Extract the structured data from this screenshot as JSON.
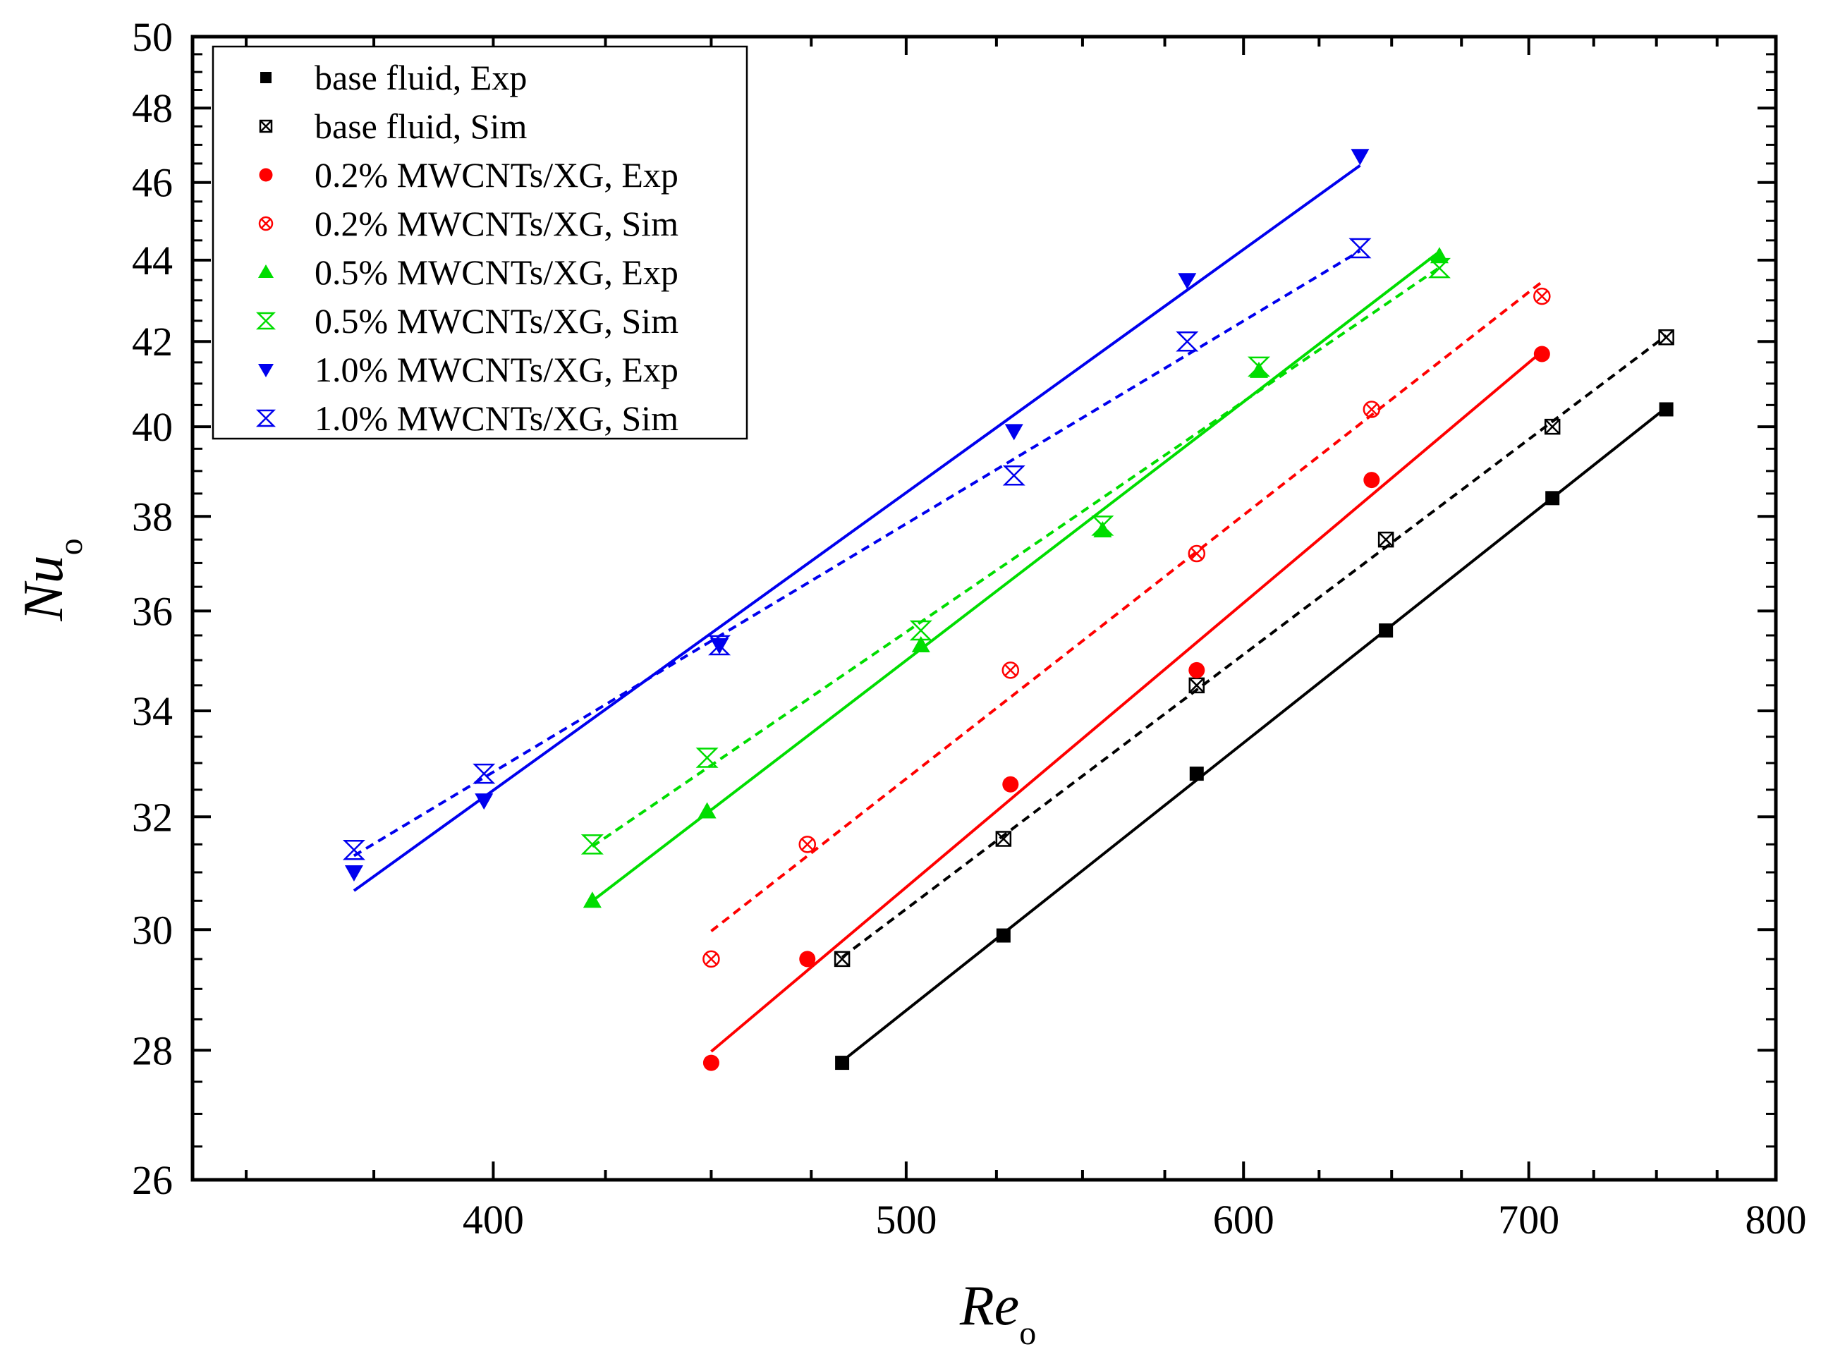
{
  "chart_data": {
    "type": "scatter",
    "title": "",
    "xlabel": "Re",
    "xlabel_sub": "o",
    "ylabel": "Nu",
    "ylabel_sub": "o",
    "x_scale": "log",
    "y_scale": "log",
    "xlim": [
      340,
      800
    ],
    "ylim": [
      26,
      50
    ],
    "x_ticks": [
      400,
      500,
      600,
      700,
      800
    ],
    "x_tick_labels": [
      "400",
      "500",
      "600",
      "700",
      "800"
    ],
    "y_ticks": [
      26,
      28,
      30,
      32,
      34,
      36,
      38,
      40,
      42,
      44,
      46,
      48,
      50
    ],
    "y_tick_labels": [
      "26",
      "28",
      "30",
      "32",
      "34",
      "36",
      "38",
      "40",
      "42",
      "44",
      "46",
      "48",
      "50"
    ],
    "legend_position": "top-left",
    "series": [
      {
        "name": "base fluid, Exp",
        "color": "#000000",
        "marker": "square-filled",
        "line": "solid",
        "x": [
          483,
          527,
          585,
          648,
          709,
          754
        ],
        "y": [
          27.8,
          29.9,
          32.8,
          35.6,
          38.4,
          40.4
        ]
      },
      {
        "name": "base fluid, Sim",
        "color": "#000000",
        "marker": "square-cross",
        "line": "dotted",
        "x": [
          483,
          527,
          585,
          648,
          709,
          754
        ],
        "y": [
          29.5,
          31.6,
          34.5,
          37.5,
          40.0,
          42.1
        ]
      },
      {
        "name": "0.2% MWCNTs/XG, Exp",
        "color": "#ff0000",
        "marker": "circle-filled",
        "line": "solid",
        "x": [
          450,
          474,
          529,
          585,
          643,
          705
        ],
        "y": [
          27.8,
          29.5,
          32.6,
          34.8,
          38.8,
          41.7
        ]
      },
      {
        "name": "0.2% MWCNTs/XG, Sim",
        "color": "#ff0000",
        "marker": "circle-cross",
        "line": "dotted",
        "x": [
          450,
          474,
          529,
          585,
          643,
          705
        ],
        "y": [
          29.5,
          31.5,
          34.8,
          37.2,
          40.4,
          43.1
        ]
      },
      {
        "name": "0.5% MWCNTs/XG, Exp",
        "color": "#00dd00",
        "marker": "triangle-up-filled",
        "line": "solid",
        "x": [
          422,
          449,
          504,
          556,
          605,
          667
        ],
        "y": [
          30.5,
          32.1,
          35.3,
          37.7,
          41.3,
          44.1
        ]
      },
      {
        "name": "0.5% MWCNTs/XG, Sim",
        "color": "#00dd00",
        "marker": "hourglass-open",
        "line": "dotted",
        "x": [
          422,
          449,
          504,
          556,
          605,
          667
        ],
        "y": [
          31.5,
          33.1,
          35.6,
          37.8,
          41.4,
          43.8
        ]
      },
      {
        "name": "1.0% MWCNTs/XG, Exp",
        "color": "#0000ee",
        "marker": "triangle-down-filled",
        "line": "solid",
        "x": [
          371,
          398,
          452,
          530,
          582,
          639
        ],
        "y": [
          31.0,
          32.3,
          35.3,
          39.9,
          43.5,
          46.7
        ]
      },
      {
        "name": "1.0% MWCNTs/XG, Sim",
        "color": "#0000ee",
        "marker": "hourglass-open",
        "line": "dotted",
        "x": [
          371,
          398,
          452,
          530,
          582,
          639
        ],
        "y": [
          31.4,
          32.8,
          35.3,
          38.9,
          42.0,
          44.3
        ]
      }
    ]
  }
}
